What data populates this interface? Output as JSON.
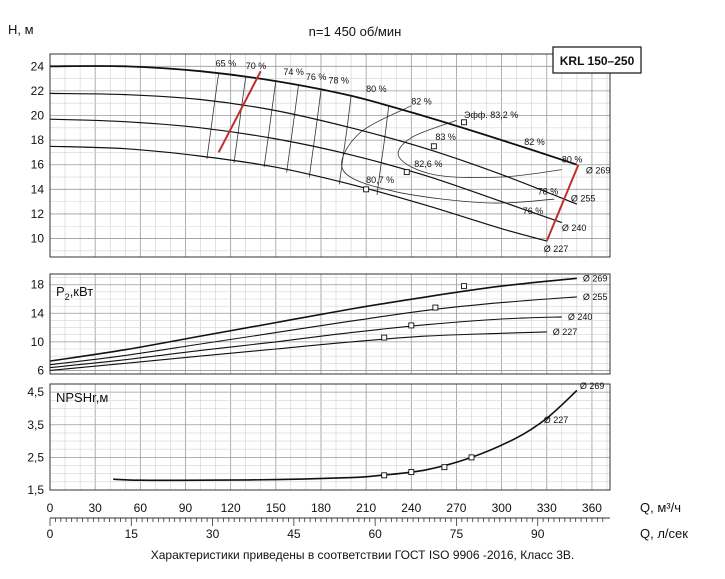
{
  "chart_data": [
    {
      "type": "line",
      "panel": "head",
      "title": "n=1 450 об/мин",
      "ylabel": "H, м",
      "ylim": [
        8.5,
        25
      ],
      "yticks": [
        10,
        12,
        14,
        16,
        18,
        20,
        22,
        24
      ],
      "model_label": "KRL 150–250",
      "grid": true,
      "series": [
        {
          "name": "Ø 269",
          "x": [
            0,
            50,
            100,
            150,
            200,
            250,
            300,
            350
          ],
          "y": [
            24.0,
            24.0,
            23.6,
            22.8,
            21.6,
            19.9,
            18.0,
            16.0
          ]
        },
        {
          "name": "Ø 255",
          "x": [
            0,
            50,
            100,
            150,
            200,
            250,
            300,
            350
          ],
          "y": [
            21.8,
            21.7,
            21.3,
            20.4,
            19.0,
            17.3,
            15.2,
            12.8
          ]
        },
        {
          "name": "Ø 240",
          "x": [
            0,
            50,
            100,
            150,
            200,
            250,
            300,
            340
          ],
          "y": [
            19.7,
            19.5,
            19.0,
            18.1,
            16.8,
            15.1,
            13.0,
            11.3
          ]
        },
        {
          "name": "Ø 227",
          "x": [
            0,
            50,
            100,
            150,
            200,
            250,
            300,
            330
          ],
          "y": [
            17.5,
            17.3,
            16.7,
            15.8,
            14.4,
            12.7,
            10.8,
            9.8
          ]
        }
      ],
      "efficiency_labels": [
        {
          "label": "65 %",
          "q": 110,
          "h": 24.0
        },
        {
          "label": "70 %",
          "q": 130,
          "h": 23.8
        },
        {
          "label": "74 %",
          "q": 155,
          "h": 23.3
        },
        {
          "label": "76 %",
          "q": 170,
          "h": 22.9
        },
        {
          "label": "78 %",
          "q": 185,
          "h": 22.6
        },
        {
          "label": "80 %",
          "q": 210,
          "h": 21.9
        },
        {
          "label": "82 %",
          "q": 240,
          "h": 20.9
        },
        {
          "label": "Эфф. 83,2 %",
          "q": 275,
          "h": 19.8
        },
        {
          "label": "83 %",
          "q": 256,
          "h": 18.0
        },
        {
          "label": "82,6 %",
          "q": 242,
          "h": 15.8
        },
        {
          "label": "80,7 %",
          "q": 210,
          "h": 14.5
        },
        {
          "label": "82 %",
          "q": 315,
          "h": 17.6
        },
        {
          "label": "80 %",
          "q": 340,
          "h": 16.2
        },
        {
          "label": "78 %",
          "q": 324,
          "h": 13.6
        },
        {
          "label": "76 %",
          "q": 314,
          "h": 12.0
        }
      ],
      "diameter_labels": [
        "Ø 269",
        "Ø 255",
        "Ø 240",
        "Ø 227"
      ]
    },
    {
      "type": "line",
      "panel": "power",
      "ylabel_main": "P",
      "ylabel_sub": "2",
      "ylabel_rest": ",кВт",
      "ylim": [
        5.5,
        19.5
      ],
      "yticks": [
        6,
        10,
        14,
        18
      ],
      "grid": true,
      "series": [
        {
          "name": "Ø 269",
          "x": [
            0,
            50,
            100,
            150,
            200,
            250,
            300,
            350
          ],
          "y": [
            7.3,
            8.9,
            10.8,
            12.7,
            14.6,
            16.3,
            17.8,
            18.9
          ]
        },
        {
          "name": "Ø 255",
          "x": [
            0,
            50,
            100,
            150,
            200,
            250,
            300,
            350
          ],
          "y": [
            6.8,
            8.1,
            9.7,
            11.3,
            12.9,
            14.4,
            15.5,
            16.3
          ]
        },
        {
          "name": "Ø 240",
          "x": [
            0,
            50,
            100,
            150,
            200,
            250,
            300,
            340
          ],
          "y": [
            6.4,
            7.5,
            8.8,
            10.0,
            11.3,
            12.4,
            13.2,
            13.5
          ]
        },
        {
          "name": "Ø 227",
          "x": [
            0,
            50,
            100,
            150,
            200,
            250,
            300,
            330
          ],
          "y": [
            6.0,
            7.0,
            8.0,
            9.0,
            10.0,
            10.8,
            11.2,
            11.4
          ]
        }
      ]
    },
    {
      "type": "line",
      "panel": "npsh",
      "ylabel": "NPSHr,м",
      "ylim": [
        1.5,
        4.75
      ],
      "yticks": [
        "1,5",
        "2,5",
        "3,5",
        "4,5"
      ],
      "ytick_values": [
        1.5,
        2.5,
        3.5,
        4.5
      ],
      "grid": true,
      "series": [
        {
          "name": "NPSHr",
          "x": [
            42,
            60,
            100,
            150,
            200,
            220,
            250,
            280,
            310,
            330,
            350
          ],
          "y": [
            1.83,
            1.8,
            1.8,
            1.82,
            1.88,
            1.95,
            2.12,
            2.5,
            3.1,
            3.7,
            4.55
          ]
        }
      ],
      "labels": [
        "Ø 269",
        "Ø 227"
      ]
    }
  ],
  "axes": {
    "q_m3h_label": "Q, м³/ч",
    "q_m3h_ticks": [
      "0",
      "30",
      "60",
      "90",
      "120",
      "150",
      "180",
      "210",
      "240",
      "270",
      "300",
      "330",
      "360"
    ],
    "q_m3h_range": [
      0,
      372
    ],
    "q_ls_label": "Q, л/сек",
    "q_ls_ticks": [
      "0",
      "15",
      "30",
      "45",
      "60",
      "75",
      "90"
    ]
  },
  "footnote": "Характеристики приведены в соответствии  ГОСТ ISO 9906 -2016, Класс 3В."
}
